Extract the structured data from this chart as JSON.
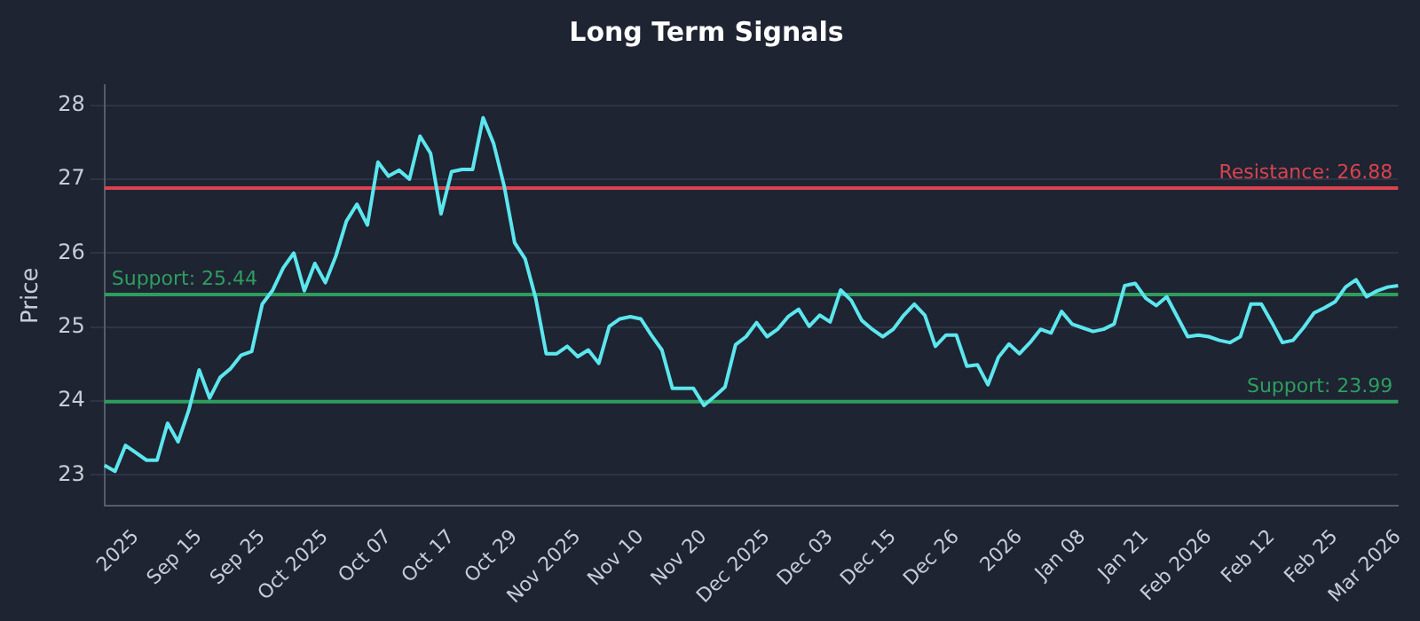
{
  "chart_data": {
    "type": "line",
    "title": "Long Term Signals",
    "ylabel": "Price",
    "categories": [
      null,
      null,
      null,
      "2025",
      null,
      null,
      null,
      null,
      null,
      "Sep 15",
      null,
      null,
      null,
      null,
      null,
      "Sep 25",
      null,
      null,
      null,
      null,
      null,
      "Oct 2025",
      null,
      null,
      null,
      null,
      null,
      "Oct 07",
      null,
      null,
      null,
      null,
      null,
      "Oct 17",
      null,
      null,
      null,
      null,
      null,
      "Oct 29",
      null,
      null,
      null,
      null,
      null,
      "Nov 2025",
      null,
      null,
      null,
      null,
      null,
      "Nov 10",
      null,
      null,
      null,
      null,
      null,
      "Nov 20",
      null,
      null,
      null,
      null,
      null,
      "Dec 2025",
      null,
      null,
      null,
      null,
      null,
      "Dec 03",
      null,
      null,
      null,
      null,
      null,
      "Dec 15",
      null,
      null,
      null,
      null,
      null,
      "Dec 26",
      null,
      null,
      null,
      null,
      null,
      "2026",
      null,
      null,
      null,
      null,
      null,
      "Jan 08",
      null,
      null,
      null,
      null,
      null,
      "Jan 21",
      null,
      null,
      null,
      null,
      null,
      "Feb 2026",
      null,
      null,
      null,
      null,
      null,
      "Feb 12",
      null,
      null,
      null,
      null,
      null,
      "Feb 25",
      null,
      null,
      null,
      null,
      null,
      "Mar 2026"
    ],
    "series": [
      {
        "color": "#5ce6ee",
        "values": [
          23.13,
          23.05,
          23.4,
          23.3,
          23.2,
          23.2,
          23.7,
          23.45,
          23.87,
          24.42,
          24.04,
          24.32,
          24.44,
          24.62,
          24.67,
          25.31,
          25.5,
          25.8,
          26.0,
          25.49,
          25.86,
          25.6,
          25.96,
          26.43,
          26.66,
          26.38,
          27.23,
          27.04,
          27.12,
          27.0,
          27.58,
          27.35,
          26.53,
          27.1,
          27.13,
          27.13,
          27.83,
          27.48,
          26.91,
          26.14,
          25.92,
          25.39,
          24.64,
          24.64,
          24.74,
          24.6,
          24.69,
          24.51,
          25.01,
          25.11,
          25.14,
          25.11,
          24.89,
          24.69,
          24.17,
          24.17,
          24.17,
          23.94,
          24.06,
          24.19,
          24.76,
          24.87,
          25.06,
          24.87,
          24.97,
          25.14,
          25.24,
          25.01,
          25.16,
          25.07,
          25.5,
          25.36,
          25.09,
          24.97,
          24.87,
          24.97,
          25.16,
          25.31,
          25.16,
          24.74,
          24.89,
          24.89,
          24.47,
          24.49,
          24.22,
          24.59,
          24.77,
          24.64,
          24.79,
          24.97,
          24.92,
          25.21,
          25.04,
          24.99,
          24.94,
          24.97,
          25.04,
          25.56,
          25.59,
          25.39,
          25.29,
          25.41,
          25.14,
          24.87,
          24.89,
          24.87,
          24.82,
          24.79,
          24.87,
          25.31,
          25.31,
          25.06,
          24.79,
          24.82,
          24.99,
          25.19,
          25.26,
          25.34,
          25.54,
          25.64,
          25.41,
          25.49,
          25.54,
          25.56
        ]
      }
    ],
    "ylim": [
      22.58,
      28.27
    ],
    "yticks": [
      23,
      24,
      25,
      26,
      27,
      28
    ],
    "grid": "y",
    "legend": false,
    "marker": "none",
    "line_style": "solid",
    "ref_lines": [
      {
        "axis": "y",
        "value": 26.88,
        "label": "Resistance: 26.88",
        "color": "#d9434f"
      },
      {
        "axis": "y",
        "value": 25.44,
        "label": "Support: 25.44",
        "color": "#2e9e5f"
      },
      {
        "axis": "y",
        "value": 23.99,
        "label": "Support: 23.99",
        "color": "#2e9e5f"
      }
    ]
  }
}
